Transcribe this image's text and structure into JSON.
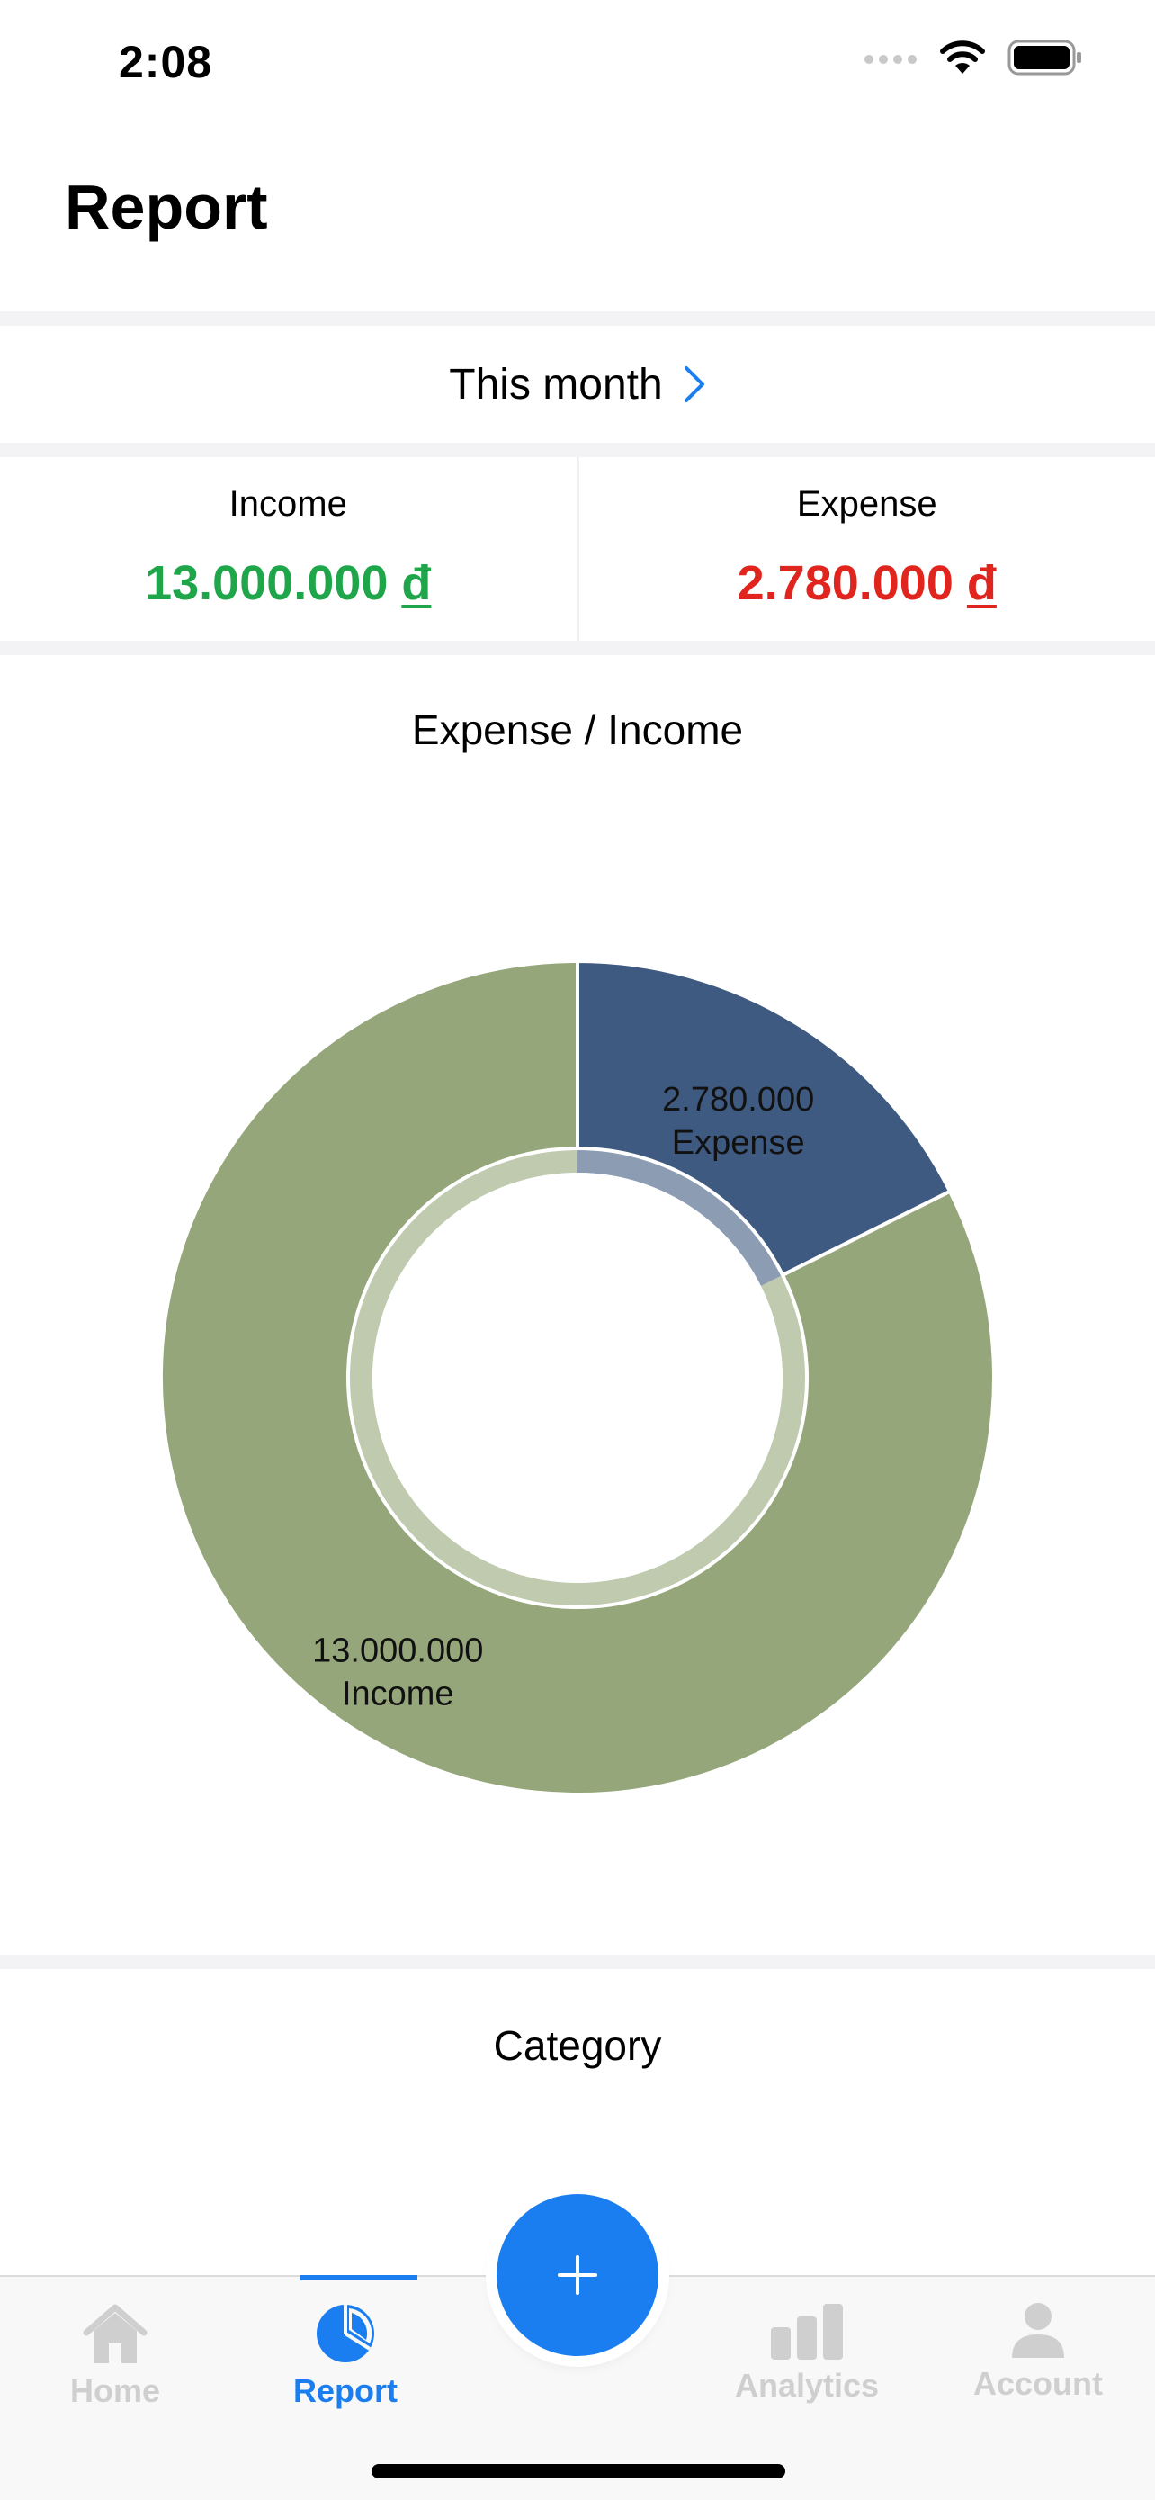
{
  "status_bar": {
    "time": "2:08"
  },
  "header": {
    "title": "Report"
  },
  "period": {
    "label": "This month"
  },
  "summary": {
    "income_label": "Income",
    "income_amount": "13.000.000",
    "expense_label": "Expense",
    "expense_amount": "2.780.000",
    "currency": "đ"
  },
  "chart_data": {
    "type": "pie",
    "title": "Expense / Income",
    "slices": [
      {
        "label": "Expense",
        "value": 2780000,
        "value_label": "2.780.000",
        "color": "#3f5a80"
      },
      {
        "label": "Income",
        "value": 13000000,
        "value_label": "13.000.000",
        "color": "#95a67a"
      }
    ]
  },
  "category": {
    "title": "Category"
  },
  "tabs": [
    {
      "label": "Home",
      "icon": "home-icon",
      "active": false
    },
    {
      "label": "Report",
      "icon": "pie-chart-icon",
      "active": true
    },
    {
      "label": "Analytics",
      "icon": "bar-chart-icon",
      "active": false
    },
    {
      "label": "Account",
      "icon": "person-icon",
      "active": false
    }
  ],
  "fab": {
    "icon": "plus-icon"
  },
  "colors": {
    "accent": "#1a7ef0",
    "income": "#1fa64a",
    "expense": "#e0251f"
  }
}
